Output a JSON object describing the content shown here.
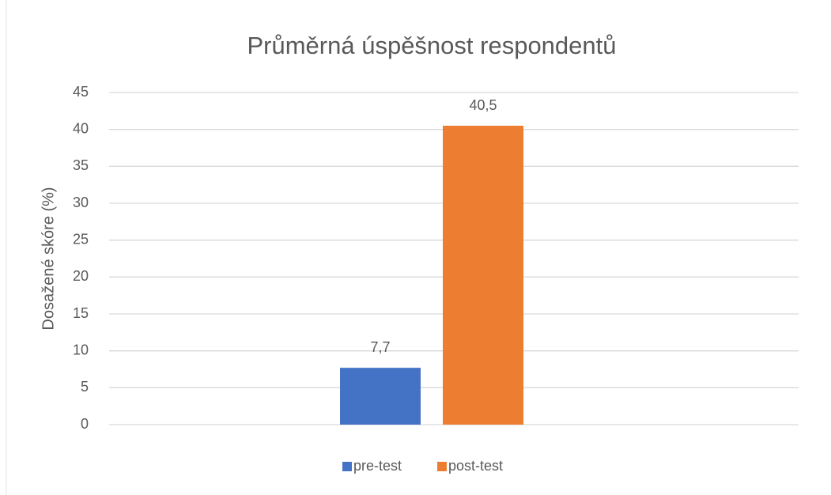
{
  "chart_data": {
    "type": "bar",
    "title": "Průměrná úspěšnost respondentů",
    "y_label": "Dosažené skóre (%)",
    "categories": [
      null
    ],
    "series": [
      {
        "name": "pre-test",
        "color": "#4472c4",
        "values": [
          7.7
        ],
        "value_labels": [
          "7,7"
        ]
      },
      {
        "name": "post-test",
        "color": "#ed7d31",
        "values": [
          40.5
        ],
        "value_labels": [
          "40,5"
        ]
      }
    ],
    "ylim": [
      0,
      45
    ],
    "yticks": [
      0,
      5,
      10,
      15,
      20,
      25,
      30,
      35,
      40,
      45
    ],
    "grid": true,
    "legend": "bottom"
  }
}
